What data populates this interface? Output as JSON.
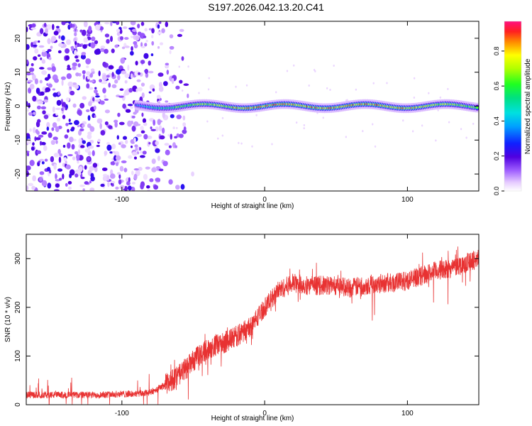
{
  "title": "S197.2026.042.13.20.C41",
  "chart_data": [
    {
      "type": "heatmap",
      "xlabel": "Height of straight line (km)",
      "ylabel": "Frequency (Hz)",
      "xlim": [
        -167,
        150
      ],
      "ylim": [
        -25,
        25
      ],
      "xticks": [
        -100,
        0,
        100
      ],
      "yticks": [
        -20,
        -10,
        0,
        10,
        20
      ],
      "line_values": [
        [
          -90,
          0.35
        ],
        [
          -85,
          0.45
        ],
        [
          -75,
          0.55
        ],
        [
          -60,
          0.65
        ],
        [
          -45,
          0.7
        ],
        [
          -30,
          0.75
        ],
        [
          -15,
          0.85
        ],
        [
          0,
          0.9
        ],
        [
          15,
          0.85
        ],
        [
          30,
          0.88
        ],
        [
          45,
          0.9
        ],
        [
          60,
          0.85
        ],
        [
          75,
          0.88
        ],
        [
          90,
          0.85
        ],
        [
          105,
          0.82
        ],
        [
          120,
          0.75
        ],
        [
          135,
          0.7
        ],
        [
          150,
          0.65
        ]
      ],
      "noise_region_km": [
        -167,
        -65
      ],
      "colorbar": {
        "label": "Normalized spectral amplitude",
        "ticks": [
          "0.0",
          "0.2",
          "0.4",
          "0.6",
          "0.8"
        ],
        "range": [
          0,
          0.97
        ]
      }
    },
    {
      "type": "line",
      "xlabel": "Height of straight line (km)",
      "ylabel": "SNR (10 * v/v)",
      "xlim": [
        -167,
        150
      ],
      "ylim": [
        0,
        350
      ],
      "xticks": [
        -100,
        0,
        100
      ],
      "yticks": [
        0,
        100,
        200,
        300
      ],
      "color": "#e83232",
      "series": [
        {
          "name": "SNR",
          "points": [
            [
              -167,
              20
            ],
            [
              -140,
              20
            ],
            [
              -120,
              20
            ],
            [
              -100,
              22
            ],
            [
              -90,
              22
            ],
            [
              -80,
              25
            ],
            [
              -70,
              40
            ],
            [
              -60,
              60
            ],
            [
              -50,
              90
            ],
            [
              -40,
              115
            ],
            [
              -30,
              125
            ],
            [
              -20,
              140
            ],
            [
              -10,
              160
            ],
            [
              0,
              200
            ],
            [
              10,
              235
            ],
            [
              20,
              250
            ],
            [
              30,
              245
            ],
            [
              40,
              245
            ],
            [
              50,
              245
            ],
            [
              60,
              240
            ],
            [
              70,
              245
            ],
            [
              80,
              250
            ],
            [
              90,
              250
            ],
            [
              100,
              255
            ],
            [
              110,
              265
            ],
            [
              120,
              275
            ],
            [
              130,
              280
            ],
            [
              140,
              290
            ],
            [
              150,
              300
            ]
          ]
        }
      ]
    }
  ]
}
